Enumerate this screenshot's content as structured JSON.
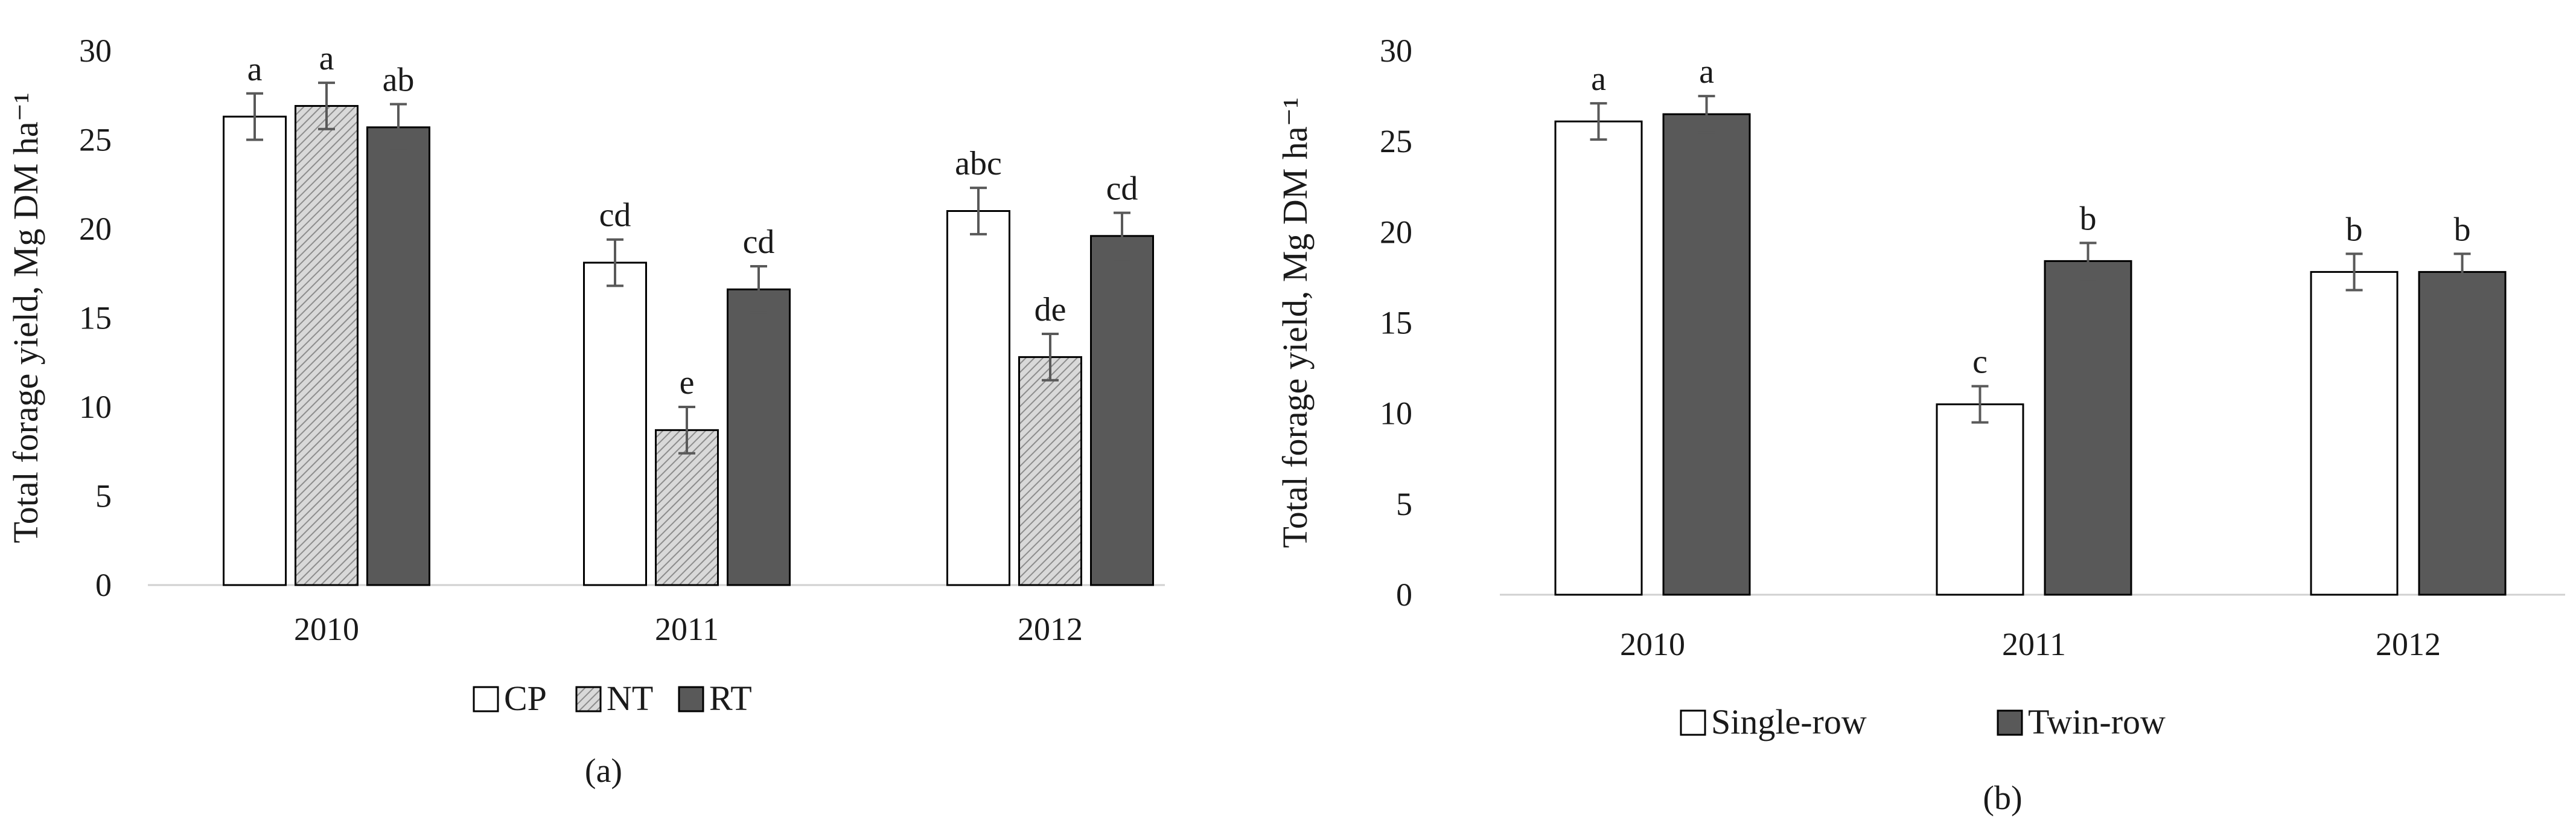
{
  "chart_data": [
    {
      "type": "bar",
      "panel_label": "(a)",
      "ylabel": "Total forage yield, Mg DM ha⁻¹",
      "ylim": [
        0,
        30
      ],
      "yticks": [
        "0",
        "5",
        "10",
        "15",
        "20",
        "25",
        "30"
      ],
      "categories": [
        "2010",
        "2011",
        "2012"
      ],
      "legend_position": "bottom",
      "series": [
        {
          "name": "CP",
          "fill": "#ffffff",
          "pattern": "none",
          "values": [
            26.3,
            18.1,
            21.0
          ],
          "errors": [
            1.3,
            1.3,
            1.3
          ],
          "letters": [
            "a",
            "cd",
            "abc"
          ]
        },
        {
          "name": "NT",
          "fill": "#d9d9d9",
          "pattern": "hatch",
          "values": [
            26.9,
            8.7,
            12.8
          ],
          "errors": [
            1.3,
            1.3,
            1.3
          ],
          "letters": [
            "a",
            "e",
            "de"
          ]
        },
        {
          "name": "RT",
          "fill": "#595959",
          "pattern": "none",
          "values": [
            25.7,
            16.6,
            19.6
          ],
          "errors": [
            1.3,
            1.3,
            1.3
          ],
          "letters": [
            "ab",
            "cd",
            "cd"
          ]
        }
      ]
    },
    {
      "type": "bar",
      "panel_label": "(b)",
      "ylabel": "Total forage yield, Mg DM ha⁻¹",
      "ylim": [
        0,
        30
      ],
      "yticks": [
        "0",
        "5",
        "10",
        "15",
        "20",
        "25",
        "30"
      ],
      "categories": [
        "2010",
        "2011",
        "2012"
      ],
      "legend_position": "bottom",
      "series": [
        {
          "name": "Single-row",
          "fill": "#ffffff",
          "pattern": "none",
          "values": [
            26.1,
            10.5,
            17.8
          ],
          "errors": [
            1.0,
            1.0,
            1.0
          ],
          "letters": [
            "a",
            "c",
            "b"
          ]
        },
        {
          "name": "Twin-row",
          "fill": "#595959",
          "pattern": "none",
          "values": [
            26.5,
            18.4,
            17.8
          ],
          "errors": [
            1.0,
            1.0,
            1.0
          ],
          "letters": [
            "a",
            "b",
            "b"
          ]
        }
      ]
    }
  ]
}
